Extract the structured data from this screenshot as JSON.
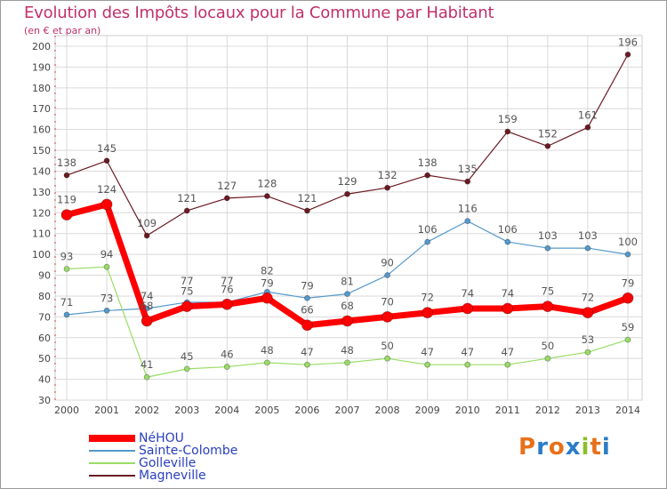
{
  "header": {
    "title": "Evolution des Impôts locaux pour la Commune par Habitant",
    "subtitle": "(en € et par an)"
  },
  "brand": {
    "text": "Proxiti",
    "colors": [
      "#e8701a",
      "#2a7cc7",
      "#e8701a",
      "#2a7cc7",
      "#8bbf2a",
      "#e8701a",
      "#2a7cc7"
    ]
  },
  "chart_data": {
    "type": "line",
    "title": "Evolution des Impôts locaux pour la Commune par Habitant",
    "subtitle": "(en € et par an)",
    "x": [
      "2000",
      "2001",
      "2002",
      "2003",
      "2004",
      "2005",
      "2006",
      "2007",
      "2008",
      "2009",
      "2010",
      "2011",
      "2012",
      "2013",
      "2014"
    ],
    "ylim": [
      30,
      200
    ],
    "yticks": [
      30,
      40,
      50,
      60,
      70,
      80,
      90,
      100,
      110,
      120,
      130,
      140,
      150,
      160,
      170,
      180,
      190,
      200
    ],
    "grid": true,
    "legend_position": "bottom-left",
    "series": [
      {
        "name": "Magneville",
        "color": "#6b1a22",
        "values": [
          138,
          145,
          109,
          121,
          127,
          128,
          121,
          129,
          132,
          138,
          135,
          159,
          152,
          161,
          196
        ]
      },
      {
        "name": "Sainte-Colombe",
        "color": "#5599cc",
        "values": [
          71,
          73,
          74,
          77,
          77,
          82,
          79,
          81,
          90,
          106,
          116,
          106,
          103,
          103,
          100
        ]
      },
      {
        "name": "Golleville",
        "color": "#99dd66",
        "values": [
          93,
          94,
          41,
          45,
          46,
          48,
          47,
          48,
          50,
          47,
          47,
          47,
          50,
          53,
          59
        ]
      },
      {
        "name": "NéHOU",
        "color": "#ff0000",
        "values": [
          119,
          124,
          68,
          75,
          76,
          79,
          66,
          68,
          70,
          72,
          74,
          74,
          75,
          72,
          79
        ]
      }
    ],
    "legend": [
      "NéHOU",
      "Sainte-Colombe",
      "Golleville",
      "Magneville"
    ]
  }
}
